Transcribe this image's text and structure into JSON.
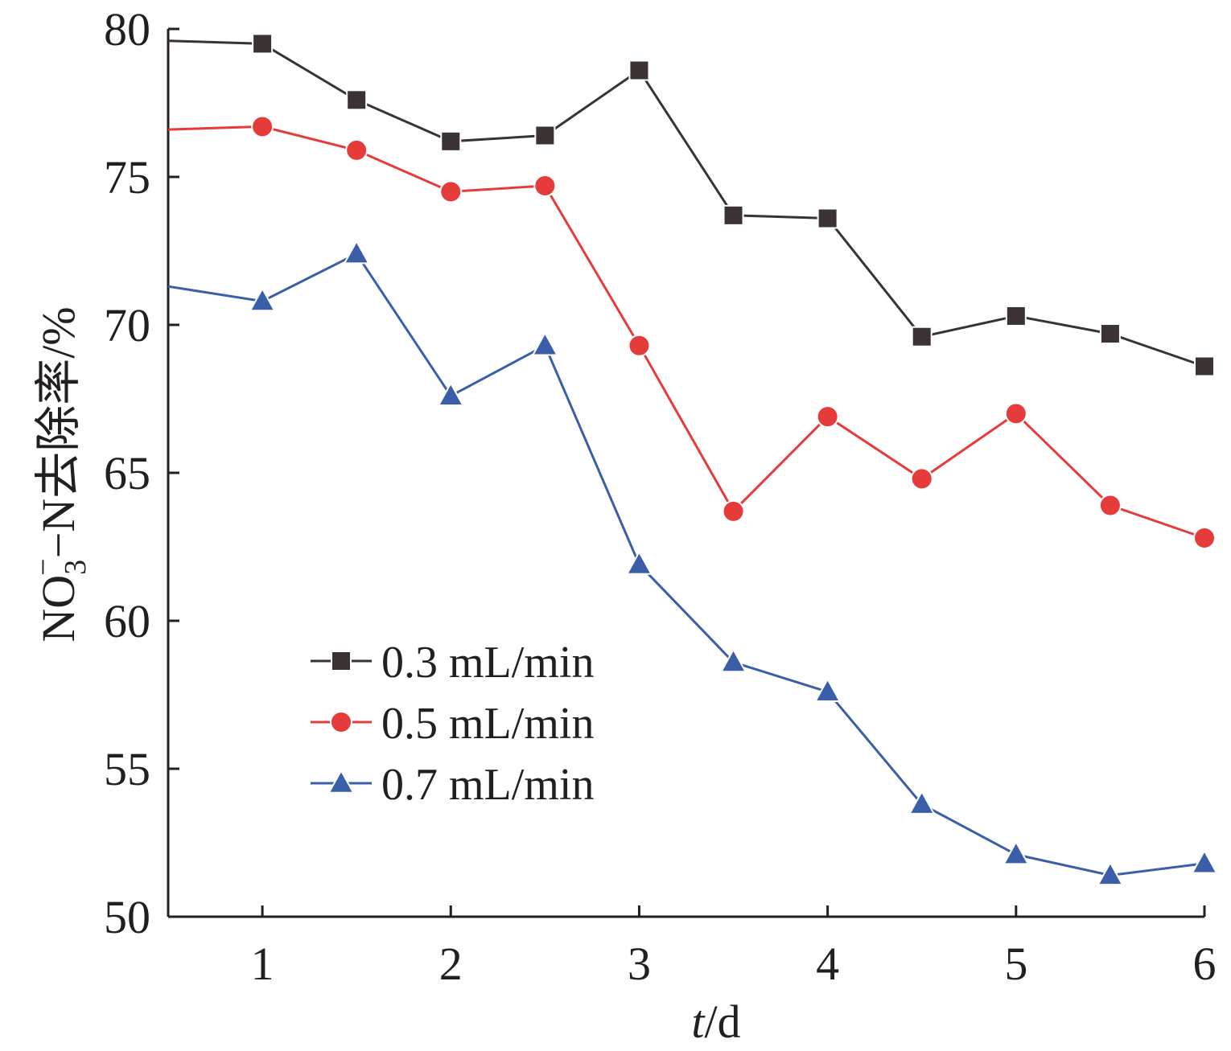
{
  "chart_data": {
    "type": "line",
    "xlabel_var": "t",
    "xlabel_unit": "/d",
    "ylabel_main": "NO",
    "ylabel_sub": "3",
    "ylabel_sup": "−",
    "ylabel_rest": "−N去除率/%",
    "xlim": [
      0.5,
      6
    ],
    "ylim": [
      50,
      80
    ],
    "xticks": [
      1,
      2,
      3,
      4,
      5,
      6
    ],
    "xtick_labels": [
      "1",
      "2",
      "3",
      "4",
      "5",
      "6"
    ],
    "yticks": [
      50,
      55,
      60,
      65,
      70,
      75,
      80
    ],
    "ytick_labels": [
      "50",
      "55",
      "60",
      "65",
      "70",
      "75",
      "80"
    ],
    "legend_position": "lower-left",
    "grid": false,
    "x": [
      0.5,
      1,
      1.5,
      2,
      2.5,
      3,
      3.5,
      4,
      4.5,
      5,
      5.5,
      6
    ],
    "series": [
      {
        "name": "0.3 mL/min",
        "color": "#3a3233",
        "marker": "square",
        "values": [
          79.6,
          79.5,
          77.6,
          76.2,
          76.4,
          78.6,
          73.7,
          73.6,
          69.6,
          70.3,
          69.7,
          68.6
        ]
      },
      {
        "name": "0.5 mL/min",
        "color": "#e63b3b",
        "marker": "circle",
        "values": [
          76.6,
          76.7,
          75.9,
          74.5,
          74.7,
          69.3,
          63.7,
          66.9,
          64.8,
          67.0,
          63.9,
          62.8
        ]
      },
      {
        "name": "0.7 mL/min",
        "color": "#3a5fa8",
        "marker": "triangle",
        "values": [
          71.3,
          70.8,
          72.4,
          67.6,
          69.3,
          61.9,
          58.6,
          57.6,
          53.8,
          52.1,
          51.4,
          51.8
        ]
      }
    ]
  }
}
